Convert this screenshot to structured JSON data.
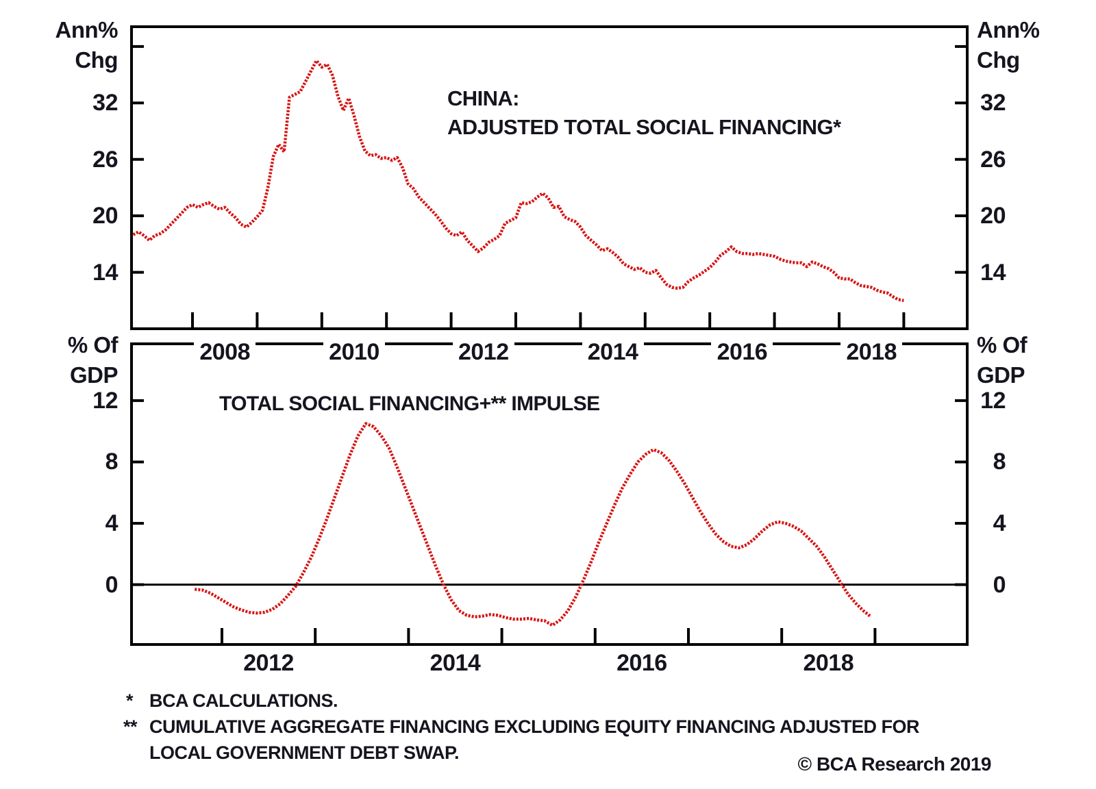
{
  "figure": {
    "footnotes": {
      "fn1_marker": "*",
      "fn1_text": "BCA CALCULATIONS.",
      "fn2_marker": "**",
      "fn2_text": "CUMULATIVE AGGREGATE FINANCING EXCLUDING EQUITY FINANCING ADJUSTED FOR",
      "fn3_text": "LOCAL GOVERNMENT DEBT SWAP.",
      "copyright": "© BCA Research 2019"
    },
    "text_color": "#15151f",
    "frame_color": "#000000",
    "accent_color": "#d81414"
  },
  "chart_data": [
    {
      "type": "line",
      "panel": "top",
      "title_lines": [
        "CHINA:",
        "ADJUSTED TOTAL SOCIAL FINANCING*"
      ],
      "y_unit_label": [
        "Ann%",
        "Chg"
      ],
      "x_axis": {
        "tick_interval_years": 1,
        "first_tick_year": 2008,
        "last_tick_year": 2019,
        "label_years": [
          2008,
          2010,
          2012,
          2014,
          2016,
          2018
        ]
      },
      "y_axis": {
        "tick_values": [
          38,
          32,
          26,
          20,
          14
        ],
        "labeled_tick_values": [
          32,
          26,
          20,
          14
        ],
        "value_range": [
          8.0,
          40.1
        ],
        "grid": false
      },
      "series": [
        {
          "name": "Adjusted total social financing (ann% chg)",
          "color": "#d81414",
          "x_start": 2007.0833,
          "x_step_years": 0.0833333,
          "values": [
            18.0,
            18.3,
            17.9,
            17.4,
            17.9,
            18.1,
            18.5,
            19.1,
            19.7,
            20.3,
            20.9,
            21.2,
            20.9,
            21.2,
            21.4,
            21.0,
            20.7,
            20.9,
            20.3,
            19.8,
            19.1,
            18.8,
            19.3,
            19.9,
            20.6,
            23.0,
            26.3,
            27.6,
            26.8,
            32.6,
            32.9,
            33.2,
            34.3,
            35.4,
            36.5,
            35.8,
            36.1,
            34.9,
            32.7,
            31.2,
            32.5,
            30.6,
            28.4,
            26.9,
            26.4,
            26.5,
            26.1,
            26.2,
            25.9,
            26.2,
            25.1,
            23.4,
            22.9,
            22.0,
            21.4,
            20.8,
            20.2,
            19.5,
            18.7,
            18.1,
            17.9,
            18.3,
            17.4,
            16.8,
            16.2,
            16.6,
            17.2,
            17.5,
            17.9,
            19.2,
            19.5,
            19.8,
            21.4,
            21.3,
            21.5,
            22.0,
            22.4,
            21.9,
            20.9,
            21.0,
            19.9,
            19.6,
            19.4,
            18.8,
            17.9,
            17.4,
            16.9,
            16.3,
            16.5,
            16.1,
            15.6,
            14.9,
            14.6,
            14.3,
            14.5,
            14.0,
            13.9,
            14.2,
            13.4,
            12.7,
            12.4,
            12.3,
            12.4,
            13.0,
            13.4,
            13.7,
            14.1,
            14.5,
            15.1,
            15.8,
            16.2,
            16.7,
            16.2,
            16.0,
            16.0,
            15.9,
            16.0,
            15.9,
            15.8,
            15.7,
            15.4,
            15.2,
            15.1,
            15.0,
            15.0,
            14.6,
            15.1,
            14.9,
            14.6,
            14.4,
            14.0,
            13.4,
            13.3,
            13.3,
            12.9,
            12.6,
            12.5,
            12.4,
            12.1,
            11.9,
            11.8,
            11.4,
            11.1,
            11.0
          ]
        }
      ]
    },
    {
      "type": "line",
      "panel": "bottom",
      "title_lines": [
        "TOTAL SOCIAL FINANCING+** IMPULSE"
      ],
      "y_unit_label": [
        "% Of",
        "GDP"
      ],
      "x_axis": {
        "tick_interval_years": 1,
        "first_tick_year": 2012,
        "last_tick_year": 2019,
        "label_years": [
          2012,
          2014,
          2016,
          2018
        ]
      },
      "y_axis": {
        "tick_values": [
          12,
          8,
          4,
          0
        ],
        "labeled_tick_values": [
          12,
          8,
          4,
          0
        ],
        "value_range": [
          -3.9,
          15.7
        ],
        "zero_line": true,
        "grid": false
      },
      "series": [
        {
          "name": "Total social financing impulse (% of GDP)",
          "color": "#d81414",
          "x_start": 2011.7083,
          "x_step_years": 0.0833333,
          "values": [
            -0.3,
            -0.35,
            -0.55,
            -0.85,
            -1.15,
            -1.45,
            -1.65,
            -1.8,
            -1.85,
            -1.8,
            -1.6,
            -1.25,
            -0.7,
            -0.1,
            0.8,
            1.8,
            3.0,
            4.3,
            5.7,
            7.1,
            8.5,
            9.7,
            10.5,
            10.3,
            9.7,
            8.9,
            7.7,
            6.4,
            5.1,
            3.8,
            2.5,
            1.2,
            0.0,
            -1.0,
            -1.7,
            -2.0,
            -2.1,
            -2.05,
            -1.95,
            -2.0,
            -2.15,
            -2.25,
            -2.25,
            -2.2,
            -2.3,
            -2.35,
            -2.65,
            -2.3,
            -1.7,
            -0.8,
            0.3,
            1.5,
            2.8,
            4.0,
            5.2,
            6.3,
            7.2,
            8.0,
            8.5,
            8.8,
            8.6,
            8.1,
            7.4,
            6.6,
            5.7,
            4.8,
            4.0,
            3.3,
            2.8,
            2.5,
            2.4,
            2.6,
            3.0,
            3.5,
            3.9,
            4.1,
            4.0,
            3.8,
            3.5,
            3.0,
            2.5,
            1.8,
            1.0,
            0.2,
            -0.6,
            -1.2,
            -1.7,
            -2.1
          ]
        }
      ]
    }
  ]
}
